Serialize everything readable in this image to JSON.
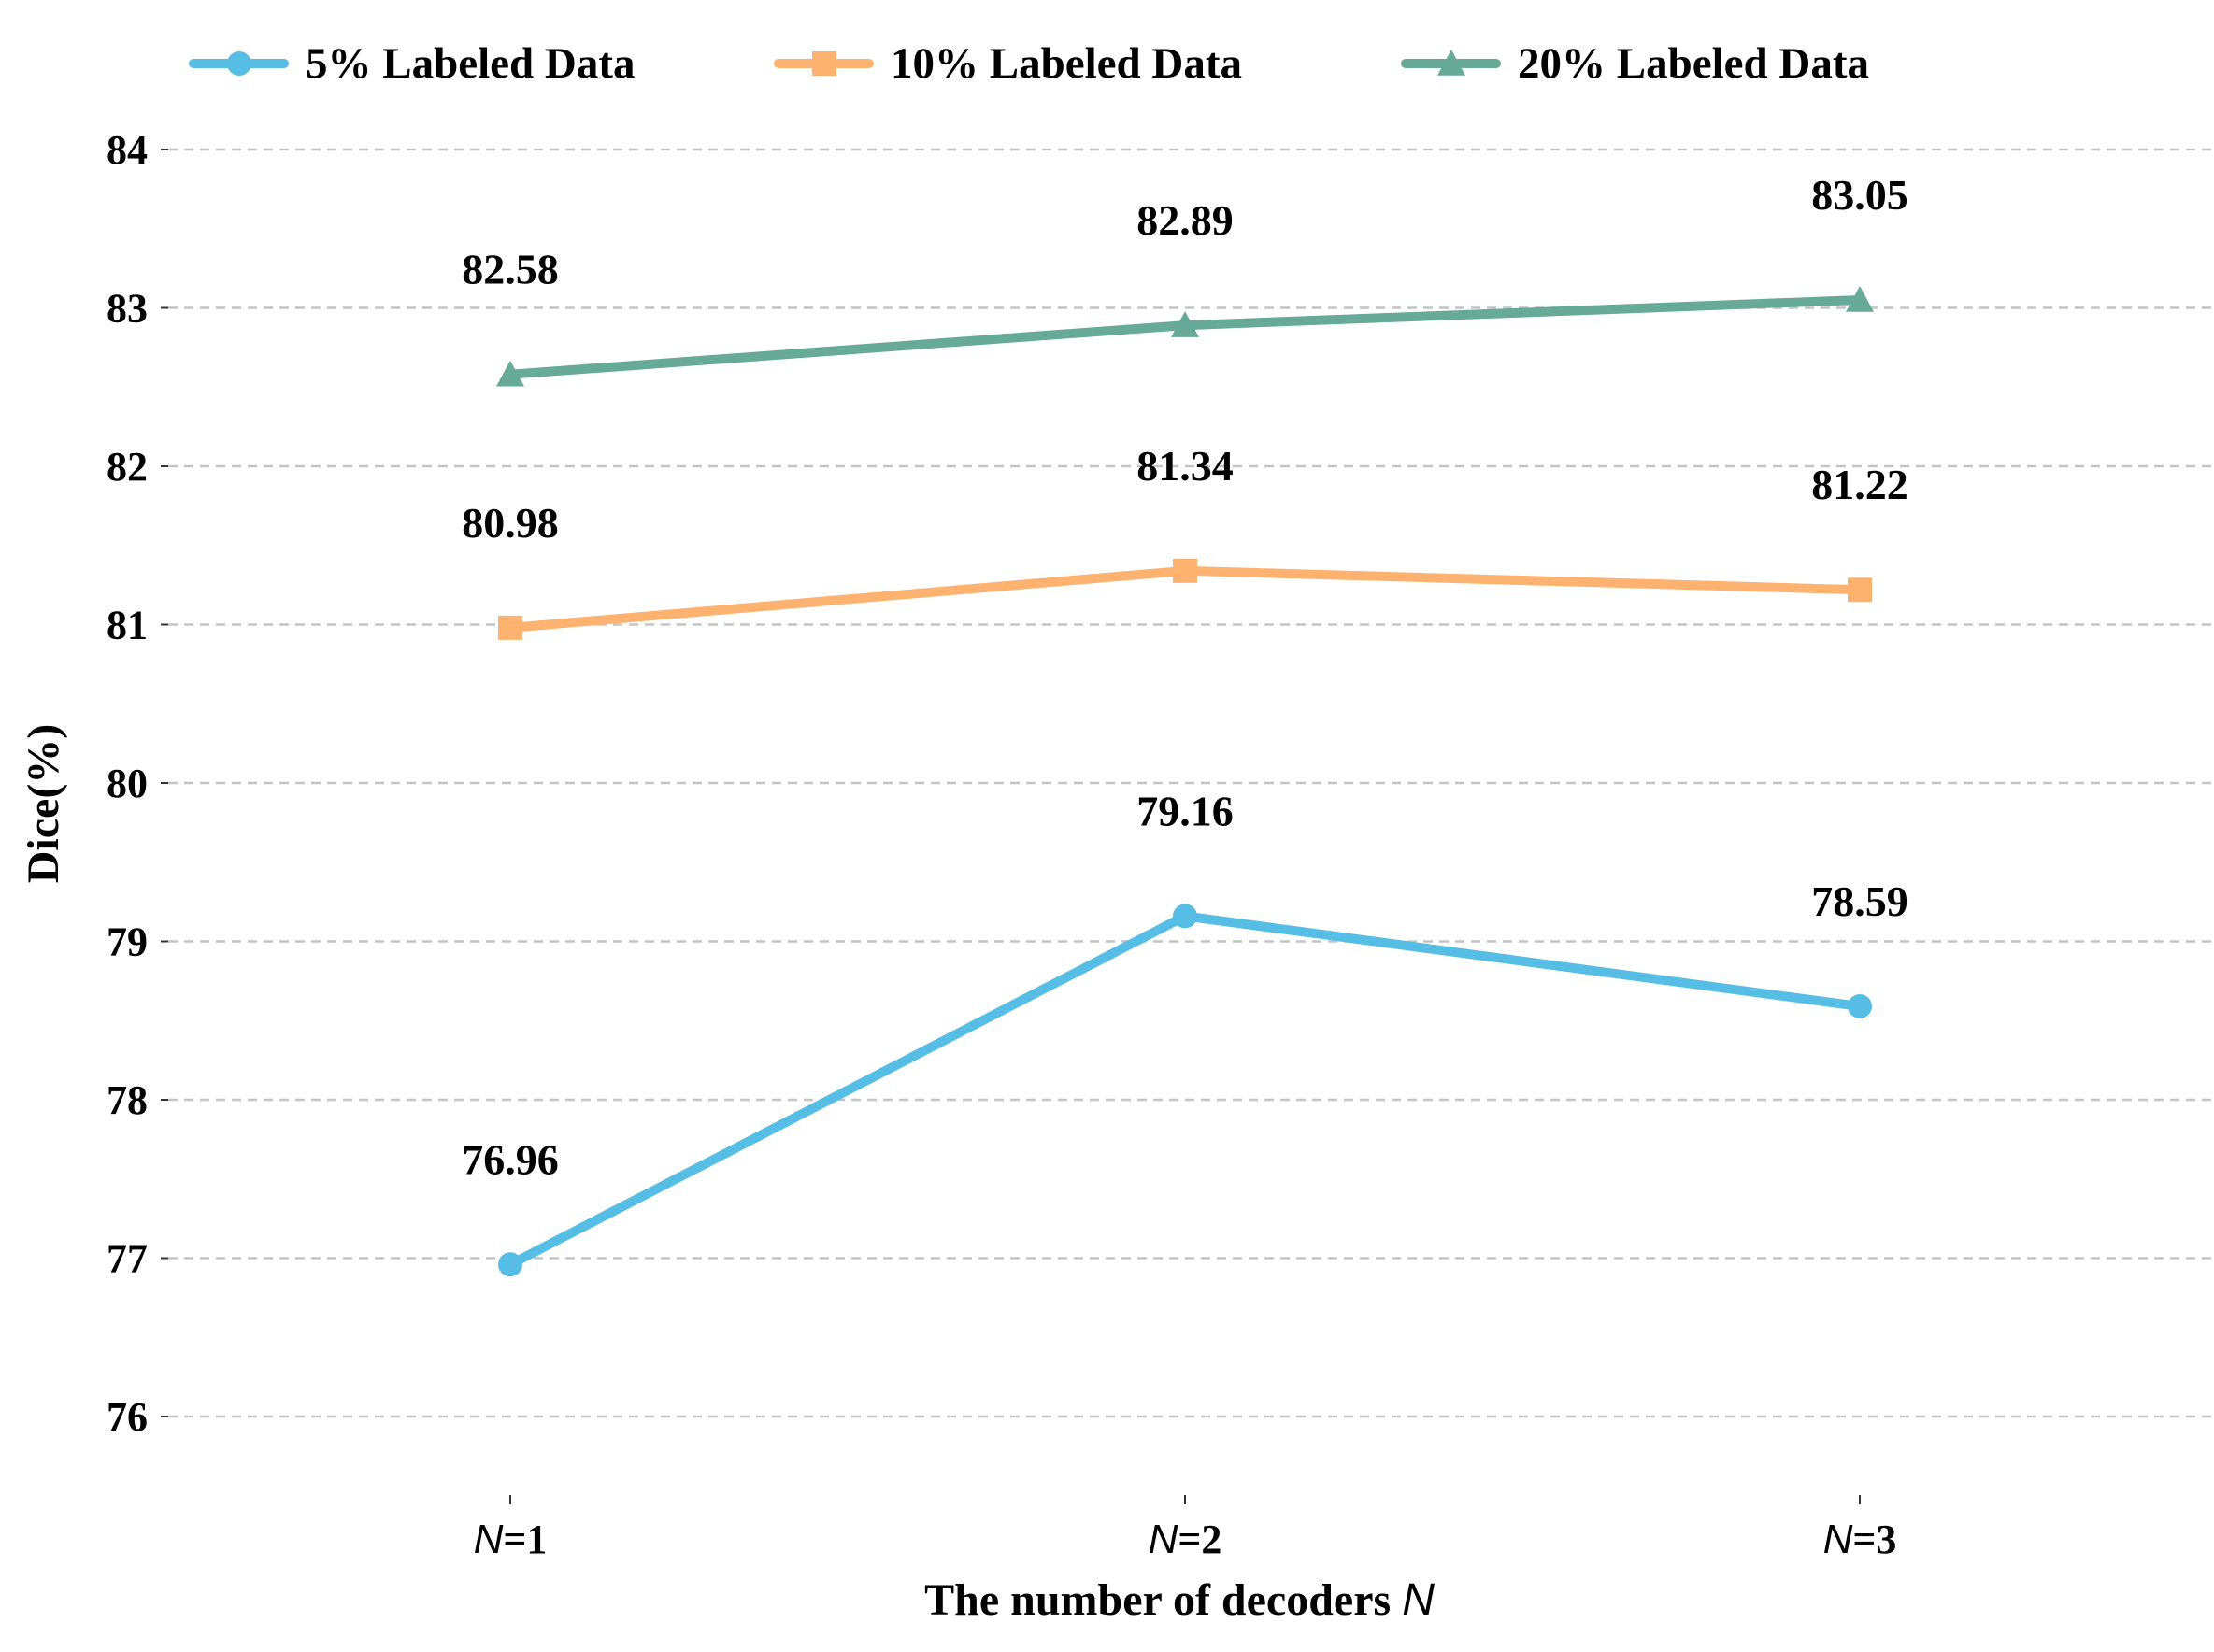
{
  "chart_data": {
    "type": "line",
    "title": "",
    "xlabel_prefix": "The number of decoders ",
    "xlabel_var": "N",
    "ylabel": "Dice(%)",
    "ylim": [
      75.55,
      84.4
    ],
    "yticks": [
      76,
      77,
      78,
      79,
      80,
      81,
      82,
      83,
      84
    ],
    "categories": [
      {
        "var": "N",
        "suffix": "=1"
      },
      {
        "var": "N",
        "suffix": "=2"
      },
      {
        "var": "N",
        "suffix": "=3"
      }
    ],
    "grid": "y-dashed",
    "legend_position": "top",
    "series": [
      {
        "name": "5% Labeled Data",
        "marker": "circle",
        "color": "#56BEE4",
        "values": [
          76.96,
          79.16,
          78.59
        ],
        "labels": [
          "76.96",
          "79.16",
          "78.59"
        ]
      },
      {
        "name": "10% Labeled Data",
        "marker": "square",
        "color": "#FDB36F",
        "values": [
          80.98,
          81.34,
          81.22
        ],
        "labels": [
          "80.98",
          "81.34",
          "81.22"
        ]
      },
      {
        "name": "20% Labeled Data",
        "marker": "triangle",
        "color": "#67AA98",
        "values": [
          82.58,
          82.89,
          83.05
        ],
        "labels": [
          "82.58",
          "82.89",
          "83.05"
        ]
      }
    ]
  }
}
